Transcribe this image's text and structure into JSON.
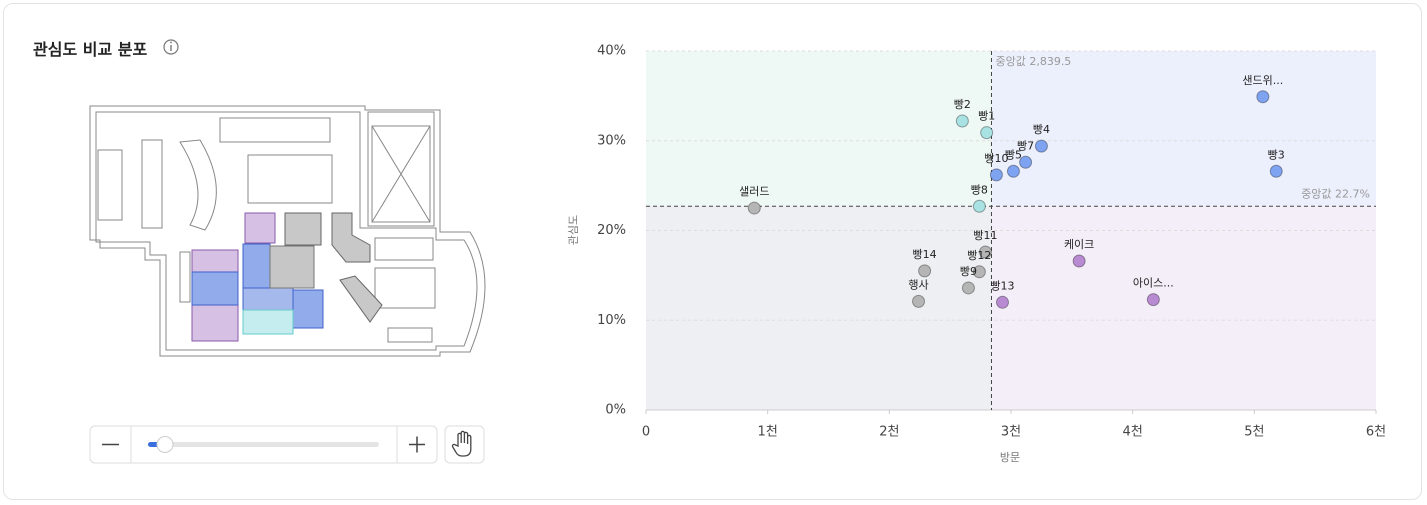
{
  "header": {
    "title": "관심도 비교 분포"
  },
  "chart_data": {
    "type": "scatter",
    "x_label": "방문",
    "y_label": "관심도",
    "xlim": [
      0,
      6000
    ],
    "ylim": [
      0,
      40
    ],
    "xticks": [
      0,
      {
        "value": 1000,
        "label": "1천"
      },
      {
        "value": 2000,
        "label": "2천"
      },
      {
        "value": 3000,
        "label": "3천"
      },
      {
        "value": 4000,
        "label": "4천"
      },
      {
        "value": 5000,
        "label": "5천"
      },
      {
        "value": 6000,
        "label": "6천"
      }
    ],
    "yticks": [
      {
        "value": 0,
        "label": "0%"
      },
      {
        "value": 10,
        "label": "10%"
      },
      {
        "value": 20,
        "label": "20%"
      },
      {
        "value": 30,
        "label": "30%"
      },
      {
        "value": 40,
        "label": "40%"
      }
    ],
    "grid": true,
    "median_x": {
      "value": 2839.5,
      "label": "중앙값 2,839.5"
    },
    "median_y": {
      "value": 22.7,
      "label": "중앙값 22.7%"
    },
    "point_labels": [
      "샐러드",
      "빵2",
      "빵1",
      "빵8",
      "빵10",
      "빵5",
      "빵7",
      "빵4",
      "샌드위...",
      "빵3",
      "빵11",
      "빵14",
      "빵12",
      "빵9",
      "행사",
      "빵13",
      "케이크",
      "아이스..."
    ],
    "x": [
      890,
      2600,
      2800,
      2740,
      2880,
      3020,
      3120,
      3250,
      5070,
      5180,
      2790,
      2290,
      2740,
      2650,
      2240,
      2930,
      3560,
      4170
    ],
    "values": [
      22.5,
      32.2,
      30.9,
      22.7,
      26.2,
      26.6,
      27.6,
      29.4,
      34.9,
      26.6,
      17.6,
      15.5,
      15.4,
      13.6,
      12.1,
      12.0,
      16.6,
      12.3
    ],
    "colors": [
      "#b5b5b5",
      "#a9e2e2",
      "#a9e2e2",
      "#a9e2e2",
      "#7ea3f0",
      "#7ea3f0",
      "#7ea3f0",
      "#7ea3f0",
      "#7ea3f0",
      "#7ea3f0",
      "#b5b5b5",
      "#b5b5b5",
      "#b5b5b5",
      "#b5b5b5",
      "#b5b5b5",
      "#b88ad2",
      "#b88ad2",
      "#b88ad2"
    ]
  }
}
